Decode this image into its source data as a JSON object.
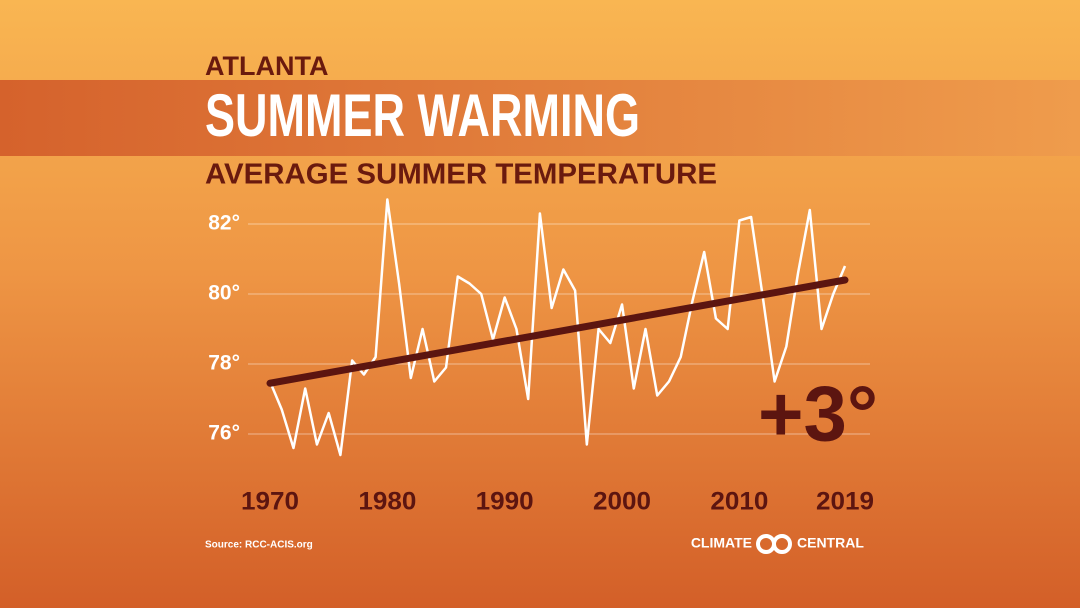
{
  "chart_data": {
    "type": "line",
    "kicker": "ATLANTA",
    "title": "SUMMER WARMING",
    "subtitle": "AVERAGE SUMMER TEMPERATURE",
    "x": [
      1970,
      1971,
      1972,
      1973,
      1974,
      1975,
      1976,
      1977,
      1978,
      1979,
      1980,
      1981,
      1982,
      1983,
      1984,
      1985,
      1986,
      1987,
      1988,
      1989,
      1990,
      1991,
      1992,
      1993,
      1994,
      1995,
      1996,
      1997,
      1998,
      1999,
      2000,
      2001,
      2002,
      2003,
      2004,
      2005,
      2006,
      2007,
      2008,
      2009,
      2010,
      2011,
      2012,
      2013,
      2014,
      2015,
      2016,
      2017,
      2018,
      2019
    ],
    "series": [
      {
        "color": "#ffffff",
        "values": [
          77.5,
          76.7,
          75.6,
          77.3,
          75.7,
          76.6,
          75.4,
          78.1,
          77.7,
          78.2,
          82.7,
          80.3,
          77.6,
          79.0,
          77.5,
          77.9,
          80.5,
          80.3,
          80.0,
          78.7,
          79.9,
          79.0,
          77.0,
          82.3,
          79.6,
          80.7,
          80.1,
          75.7,
          79.0,
          78.6,
          79.7,
          77.3,
          79.0,
          77.1,
          77.5,
          78.2,
          79.8,
          81.2,
          79.3,
          79.0,
          82.1,
          82.2,
          79.9,
          77.5,
          78.5,
          80.6,
          82.4,
          79.0,
          80.0,
          80.8
        ]
      }
    ],
    "trend": {
      "color": "#5c1510",
      "x": [
        1970,
        2019
      ],
      "values": [
        77.45,
        80.4
      ]
    },
    "annotation": "+3°",
    "xlim": [
      1970,
      2019
    ],
    "xticks": [
      1970,
      1980,
      1990,
      2000,
      2010,
      2019
    ],
    "ylim": [
      75,
      83
    ],
    "yticks": [
      {
        "value": 76,
        "label": "76°"
      },
      {
        "value": 78,
        "label": "78°"
      },
      {
        "value": 80,
        "label": "80°"
      },
      {
        "value": 82,
        "label": "82°"
      }
    ],
    "grid": true,
    "source": "Source: RCC-ACIS.org",
    "logo": [
      "CLIMATE",
      "CENTRAL"
    ]
  }
}
